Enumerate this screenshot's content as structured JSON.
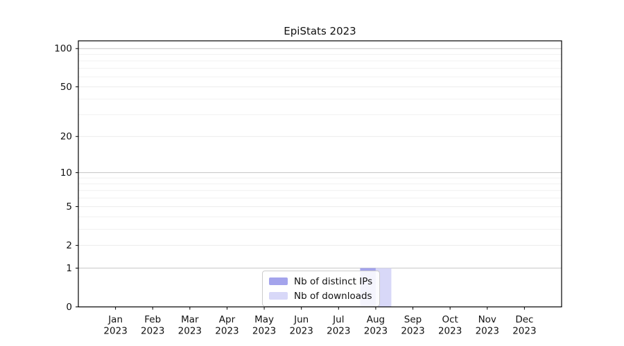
{
  "chart_data": {
    "type": "bar",
    "title": "EpiStats 2023",
    "x_tick_labels": [
      "Jan\n2023",
      "Feb\n2023",
      "Mar\n2023",
      "Apr\n2023",
      "May\n2023",
      "Jun\n2023",
      "Jul\n2023",
      "Aug\n2023",
      "Sep\n2023",
      "Oct\n2023",
      "Nov\n2023",
      "Dec\n2023"
    ],
    "yscale": "log1p",
    "yticks": [
      0,
      1,
      2,
      5,
      10,
      20,
      50,
      100
    ],
    "minor_yticks": [
      3,
      4,
      6,
      7,
      8,
      9,
      30,
      40,
      60,
      70,
      80,
      90
    ],
    "emphasized_gridlines": [
      1,
      10,
      100
    ],
    "ylim": [
      0,
      115
    ],
    "grid": true,
    "legend_position": "lower center",
    "series": [
      {
        "name": "Nb of distinct IPs",
        "color": "#a4a4ec",
        "values": [
          0,
          0,
          0,
          0,
          0,
          0,
          0,
          1,
          0,
          0,
          0,
          0
        ]
      },
      {
        "name": "Nb of downloads",
        "color": "#d8d8f8",
        "values": [
          0,
          0,
          0,
          0,
          0,
          0,
          0,
          1,
          0,
          0,
          0,
          0
        ]
      }
    ]
  }
}
